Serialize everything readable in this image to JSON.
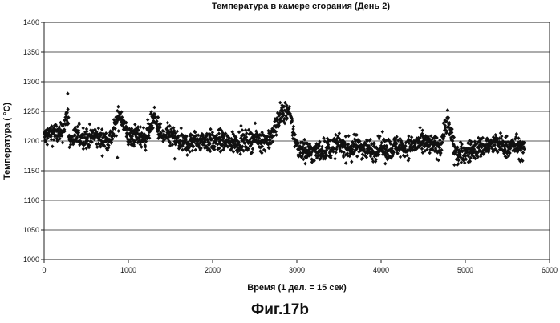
{
  "figure": {
    "caption": "Фиг.17b"
  },
  "chart_data": {
    "type": "scatter",
    "title": "Температура в камере сгорания (День 2)",
    "xlabel": "Время (1 дел. = 15 сек)",
    "ylabel": "Температура ( °C)",
    "xlim": [
      0,
      6000
    ],
    "ylim": [
      1000,
      1400
    ],
    "x_ticks": [
      0,
      1000,
      2000,
      3000,
      4000,
      5000,
      6000
    ],
    "y_ticks": [
      1000,
      1050,
      1100,
      1150,
      1200,
      1250,
      1300,
      1350,
      1400
    ],
    "grid": "horizontal",
    "marker": "diamond",
    "color": "#111111",
    "series": [
      {
        "x_range": [
          0,
          5700
        ],
        "points": [
          [
            0,
            1205
          ],
          [
            100,
            1215
          ],
          [
            200,
            1210
          ],
          [
            280,
            1245
          ],
          [
            300,
            1200
          ],
          [
            400,
            1210
          ],
          [
            500,
            1205
          ],
          [
            600,
            1208
          ],
          [
            700,
            1200
          ],
          [
            800,
            1206
          ],
          [
            900,
            1248
          ],
          [
            1000,
            1205
          ],
          [
            1100,
            1210
          ],
          [
            1200,
            1204
          ],
          [
            1300,
            1240
          ],
          [
            1400,
            1206
          ],
          [
            1500,
            1210
          ],
          [
            1600,
            1198
          ],
          [
            1700,
            1195
          ],
          [
            1800,
            1200
          ],
          [
            1900,
            1202
          ],
          [
            2000,
            1198
          ],
          [
            2100,
            1200
          ],
          [
            2200,
            1196
          ],
          [
            2300,
            1200
          ],
          [
            2400,
            1198
          ],
          [
            2500,
            1205
          ],
          [
            2600,
            1200
          ],
          [
            2700,
            1206
          ],
          [
            2800,
            1245
          ],
          [
            2900,
            1250
          ],
          [
            3000,
            1190
          ],
          [
            3100,
            1185
          ],
          [
            3200,
            1180
          ],
          [
            3300,
            1185
          ],
          [
            3400,
            1188
          ],
          [
            3500,
            1195
          ],
          [
            3600,
            1186
          ],
          [
            3700,
            1192
          ],
          [
            3800,
            1188
          ],
          [
            3900,
            1185
          ],
          [
            4000,
            1190
          ],
          [
            4100,
            1186
          ],
          [
            4200,
            1192
          ],
          [
            4300,
            1188
          ],
          [
            4400,
            1194
          ],
          [
            4500,
            1196
          ],
          [
            4600,
            1192
          ],
          [
            4700,
            1190
          ],
          [
            4780,
            1235
          ],
          [
            4900,
            1175
          ],
          [
            5000,
            1180
          ],
          [
            5100,
            1185
          ],
          [
            5200,
            1190
          ],
          [
            5300,
            1192
          ],
          [
            5400,
            1195
          ],
          [
            5500,
            1190
          ],
          [
            5600,
            1192
          ],
          [
            5700,
            1185
          ]
        ],
        "outliers": [
          [
            280,
            1280
          ],
          [
            2880,
            1260
          ],
          [
            4790,
            1252
          ],
          [
            3100,
            1162
          ],
          [
            4050,
            1162
          ],
          [
            4870,
            1160
          ],
          [
            870,
            1172
          ],
          [
            1550,
            1170
          ],
          [
            3650,
            1165
          ]
        ]
      }
    ]
  }
}
